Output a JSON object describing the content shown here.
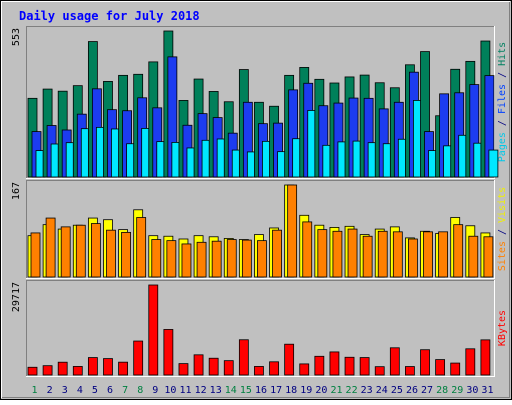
{
  "chart_data": {
    "type": "bar",
    "title": "Daily usage for July 2018",
    "categories": [
      "1",
      "2",
      "3",
      "4",
      "5",
      "6",
      "7",
      "8",
      "9",
      "10",
      "11",
      "12",
      "13",
      "14",
      "15",
      "16",
      "17",
      "18",
      "19",
      "20",
      "21",
      "22",
      "23",
      "24",
      "25",
      "26",
      "27",
      "28",
      "29",
      "30",
      "31"
    ],
    "weekend_days": [
      "1",
      "7",
      "8",
      "14",
      "15",
      "21",
      "22",
      "28",
      "29"
    ],
    "panels": [
      {
        "id": "hits",
        "max_label": "553",
        "ylim": [
          0,
          553
        ],
        "right_labels": [
          {
            "text": "Pages",
            "color": "#00c8e8"
          },
          {
            "text": " / ",
            "color": "#000080"
          },
          {
            "text": "Files",
            "color": "#0040ff"
          },
          {
            "text": " / ",
            "color": "#000080"
          },
          {
            "text": "Hits",
            "color": "#008060"
          }
        ],
        "series": [
          {
            "name": "Hits",
            "color": "#00805a",
            "values": [
              298,
              333,
              325,
              346,
              513,
              362,
              385,
              389,
              436,
              553,
              290,
              371,
              324,
              285,
              407,
              283,
              268,
              385,
              415,
              370,
              356,
              379,
              386,
              357,
              338,
              425,
              475,
              232,
              408,
              438,
              515
            ]
          },
          {
            "name": "Files",
            "color": "#1c3cf0",
            "values": [
              172,
              195,
              178,
              238,
              334,
              255,
              251,
              300,
              262,
              455,
              196,
              240,
              225,
              166,
              283,
              202,
              204,
              330,
              355,
              270,
              280,
              299,
              298,
              258,
              283,
              397,
              172,
              315,
              319,
              350,
              384
            ]
          },
          {
            "name": "Pages",
            "color": "#00e8ff",
            "values": [
              100,
              125,
              130,
              183,
              188,
              182,
              126,
              184,
              134,
              131,
              110,
              139,
              144,
              102,
              95,
              135,
              96,
              145,
              252,
              120,
              133,
              136,
              130,
              126,
              143,
              290,
              100,
              118,
              158,
              128,
              102
            ]
          }
        ]
      },
      {
        "id": "visits",
        "max_label": "167",
        "ylim": [
          0,
          167
        ],
        "right_labels": [
          {
            "text": "Sites",
            "color": "#ff8000"
          },
          {
            "text": " / ",
            "color": "#000080"
          },
          {
            "text": "Visits",
            "color": "#f0f000"
          }
        ],
        "series": [
          {
            "name": "Visits",
            "color": "#ffff00",
            "values": [
              75,
              95,
              87,
              94,
              107,
              104,
              86,
              122,
              75,
              74,
              69,
              75,
              73,
              70,
              68,
              77,
              89,
              167,
              112,
              94,
              90,
              92,
              77,
              87,
              91,
              71,
              83,
              79,
              108,
              93,
              80
            ]
          },
          {
            "name": "Sites",
            "color": "#ff8000",
            "values": [
              80,
              107,
              91,
              94,
              97,
              85,
              81,
              108,
              68,
              66,
              60,
              63,
              65,
              68,
              67,
              66,
              85,
              167,
              100,
              86,
              83,
              87,
              74,
              83,
              82,
              69,
              82,
              82,
              95,
              74,
              73
            ]
          }
        ]
      },
      {
        "id": "kbytes",
        "max_label": "29717",
        "ylim": [
          0,
          29717
        ],
        "right_labels": [
          {
            "text": "KBytes",
            "color": "#ff0000"
          }
        ],
        "series": [
          {
            "name": "KBytes",
            "color": "#ff0000",
            "values": [
              2552,
              3078,
              4226,
              2823,
              5757,
              5424,
              4237,
              11213,
              29717,
              15037,
              3759,
              6664,
              5537,
              4737,
              11638,
              2823,
              4355,
              10167,
              3664,
              6176,
              7620,
              5856,
              5755,
              2750,
              8983,
              2796,
              8350,
              5091,
              3938,
              8651,
              11602
            ]
          }
        ]
      }
    ],
    "colors": {
      "background": "#c0c0c0",
      "title": "#0000ff",
      "day_weekday": "#000080",
      "day_weekend": "#008040",
      "axis_label": "#000000"
    }
  }
}
